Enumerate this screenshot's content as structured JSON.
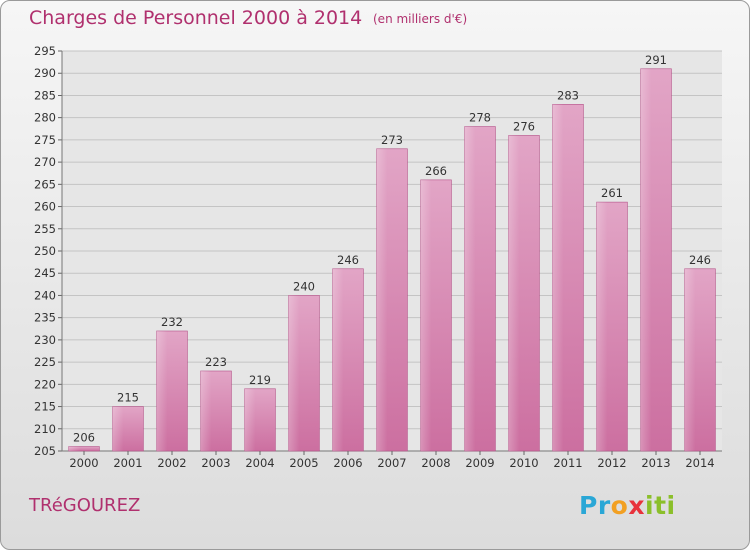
{
  "chart_data": {
    "type": "bar",
    "title": "Charges de Personnel 2000 à 2014",
    "subtitle": "(en milliers d'€)",
    "categories": [
      "2000",
      "2001",
      "2002",
      "2003",
      "2004",
      "2005",
      "2006",
      "2007",
      "2008",
      "2009",
      "2010",
      "2011",
      "2012",
      "2013",
      "2014"
    ],
    "values": [
      206,
      215,
      232,
      223,
      219,
      240,
      246,
      273,
      266,
      278,
      276,
      283,
      261,
      291,
      246
    ],
    "ylim": [
      205,
      295
    ],
    "yticks": [
      205,
      210,
      215,
      220,
      225,
      230,
      235,
      240,
      245,
      250,
      255,
      260,
      265,
      270,
      275,
      280,
      285,
      290,
      295
    ],
    "grid": true,
    "bar_color": "#cc6fa0",
    "text_color": "#b0306e"
  },
  "footer": {
    "commune": "TRéGOUREZ",
    "logo_letters": [
      "P",
      "r",
      "o",
      "x",
      "i",
      "t",
      "i"
    ],
    "logo_colors": [
      "#2aa7d6",
      "#2aa7d6",
      "#f2a022",
      "#e8323c",
      "#8bbf2a",
      "#8bbf2a",
      "#8bbf2a"
    ]
  }
}
